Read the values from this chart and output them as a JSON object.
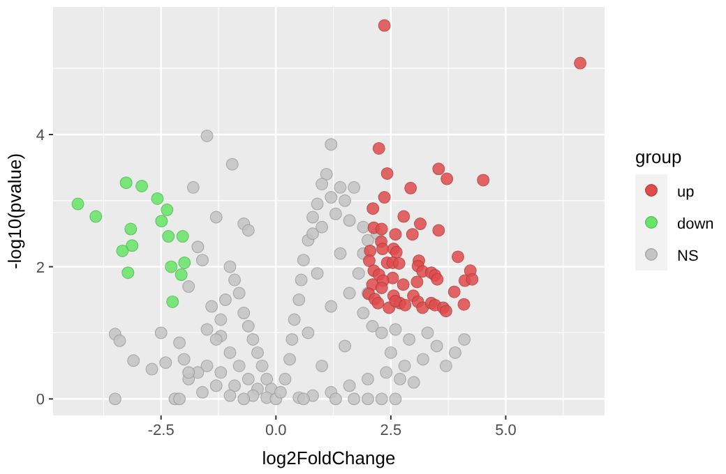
{
  "chart_data": {
    "type": "scatter",
    "xlabel": "log2FoldChange",
    "ylabel": "-log10(pvalue)",
    "legend_title": "group",
    "legend": "right",
    "grid": true,
    "marker": "circle",
    "xlim": [
      -4.85,
      7.15
    ],
    "ylim": [
      -0.25,
      5.93
    ],
    "xticks": [
      {
        "value": -3.75,
        "label": null
      },
      {
        "value": -2.5,
        "label": "-2.5"
      },
      {
        "value": -1.25,
        "label": null
      },
      {
        "value": 0,
        "label": "0.0"
      },
      {
        "value": 1.25,
        "label": null
      },
      {
        "value": 2.5,
        "label": "2.5"
      },
      {
        "value": 3.75,
        "label": null
      },
      {
        "value": 5,
        "label": "5.0"
      },
      {
        "value": 6.25,
        "label": null
      }
    ],
    "yticks": [
      0,
      {
        "value": 1,
        "label": null
      },
      2,
      {
        "value": 3,
        "label": null
      },
      4,
      {
        "value": 5,
        "label": null
      }
    ],
    "series": [
      {
        "name": "up",
        "color": "#e04c4c",
        "x": [
          2.36,
          6.62,
          2.24,
          2.42,
          3.54,
          3.72,
          4.51,
          2.93,
          2.36,
          2.11,
          2.78,
          3.14,
          2.13,
          2.3,
          3.54,
          2.6,
          2.97,
          2.29,
          2.05,
          2.32,
          2.56,
          2.62,
          3.96,
          2.03,
          2.42,
          2.54,
          2.68,
          3.11,
          3.09,
          4.23,
          2.13,
          2.24,
          3.19,
          3.38,
          3.46,
          3.51,
          4.11,
          4.27,
          2.54,
          2.33,
          3.07,
          2.77,
          2.1,
          2.3,
          3.88,
          2.02,
          2.56,
          2.99,
          2.15,
          2.22,
          2.7,
          2.46,
          3.09,
          3.19,
          3.38,
          3.46,
          3.64,
          3.7,
          4.09,
          2.6,
          2.81
        ],
        "values": [
          5.65,
          5.08,
          3.79,
          3.41,
          3.48,
          3.33,
          3.31,
          3.19,
          3.05,
          2.88,
          2.76,
          2.65,
          2.59,
          2.57,
          2.55,
          2.49,
          2.49,
          2.38,
          2.24,
          2.27,
          2.27,
          2.22,
          2.15,
          2.09,
          2.06,
          2.06,
          2.05,
          2.09,
          2.01,
          1.94,
          1.94,
          1.88,
          1.93,
          1.91,
          1.87,
          1.81,
          1.79,
          1.81,
          1.83,
          1.79,
          1.77,
          1.73,
          1.73,
          1.68,
          1.62,
          1.59,
          1.56,
          1.56,
          1.51,
          1.45,
          1.45,
          1.38,
          1.47,
          1.38,
          1.45,
          1.42,
          1.38,
          1.33,
          1.43,
          1.48,
          1.42
        ]
      },
      {
        "name": "down",
        "color": "#66e666",
        "x": [
          -4.31,
          -3.92,
          -3.26,
          -2.92,
          -2.58,
          -2.37,
          -2.49,
          -3.16,
          -2.34,
          -2.03,
          -3.13,
          -3.34,
          -2.28,
          -1.99,
          -2.06,
          -3.22,
          -2.25
        ],
        "values": [
          2.95,
          2.76,
          3.27,
          3.22,
          3.03,
          2.86,
          2.69,
          2.57,
          2.46,
          2.46,
          2.32,
          2.24,
          2.0,
          2.06,
          1.88,
          1.91,
          1.47
        ]
      },
      {
        "name": "NS",
        "color": "#c4c4c4",
        "x": [
          -1.5,
          -0.95,
          1.2,
          -1.8,
          -1.3,
          -0.7,
          -0.6,
          1.1,
          1.0,
          1.4,
          1.7,
          1.2,
          0.9,
          0.8,
          -3.5,
          -3.4,
          -3.1,
          -2.7,
          -2.5,
          -2.4,
          -2.1,
          -2.0,
          -1.9,
          -3.5,
          -2.2,
          -2.1,
          -1.7,
          -1.6,
          -1.9,
          -1.4,
          -1.5,
          -1.2,
          -1.0,
          -0.9,
          -0.8,
          -0.7,
          -0.6,
          -0.5,
          -0.4,
          -0.3,
          -0.2,
          -0.1,
          -1.1,
          -1.2,
          -1.3,
          -1.0,
          -0.8,
          -0.6,
          -0.4,
          -1.5,
          -1.2,
          -0.9,
          -0.5,
          -1.7,
          -1.9,
          -1.3,
          -1.0,
          -0.7,
          -1.6,
          -0.2,
          0,
          0.1,
          0.2,
          0.3,
          0.35,
          0.4,
          0.5,
          0.55,
          0.6,
          0.7,
          0.8,
          1.0,
          1.3,
          1.6,
          1.9,
          2.0,
          1.9,
          1.8,
          2.0,
          1.9,
          2.1,
          2.3,
          2.6,
          2.9,
          3.3,
          3.5,
          3.9,
          4.1,
          3.7,
          3.2,
          2.8,
          2.4,
          2.0,
          1.6,
          1.2,
          0.8,
          0.5,
          1.0,
          1.5,
          1.2,
          0.9,
          1.4,
          1.6,
          0.7,
          1.3,
          1.7,
          2.0,
          2.3,
          0.6,
          2.7,
          3.0,
          2.5,
          2.2,
          1.5,
          2.6
        ],
        "values": [
          3.98,
          3.55,
          3.85,
          3.2,
          2.75,
          2.65,
          2.55,
          3.4,
          3.25,
          3.2,
          3.2,
          3.05,
          2.95,
          2.75,
          0.98,
          0.88,
          0.58,
          0.45,
          1.0,
          0.55,
          0.85,
          0.6,
          0.3,
          0,
          0,
          0,
          2.3,
          2.1,
          1.7,
          1.4,
          1.05,
          0.95,
          2.0,
          1.8,
          1.6,
          1.3,
          1.1,
          0.9,
          0.7,
          0.5,
          0.3,
          0.15,
          1.5,
          1.2,
          0.9,
          0.7,
          0.5,
          0.3,
          0.15,
          0.5,
          0.4,
          0.2,
          0.05,
          0.4,
          0.4,
          0.2,
          0.05,
          0,
          0.1,
          0.02,
          0,
          0.1,
          0.3,
          0.6,
          0.9,
          1.2,
          1.5,
          1.8,
          2.1,
          2.4,
          2.5,
          2.6,
          2.8,
          2.7,
          2.6,
          2.4,
          2.2,
          1.9,
          1.6,
          1.3,
          1.1,
          1.0,
          1.05,
          0.9,
          1.0,
          0.8,
          0.7,
          0.9,
          0.5,
          0.6,
          0.5,
          0.4,
          0.3,
          0.2,
          0.1,
          0.05,
          0.02,
          0.5,
          0.8,
          1.4,
          1.9,
          2.2,
          1.6,
          1.0,
          0,
          0,
          0,
          0,
          0,
          0.3,
          0.25,
          0.7,
          2.5,
          3.0,
          0
        ]
      }
    ]
  }
}
